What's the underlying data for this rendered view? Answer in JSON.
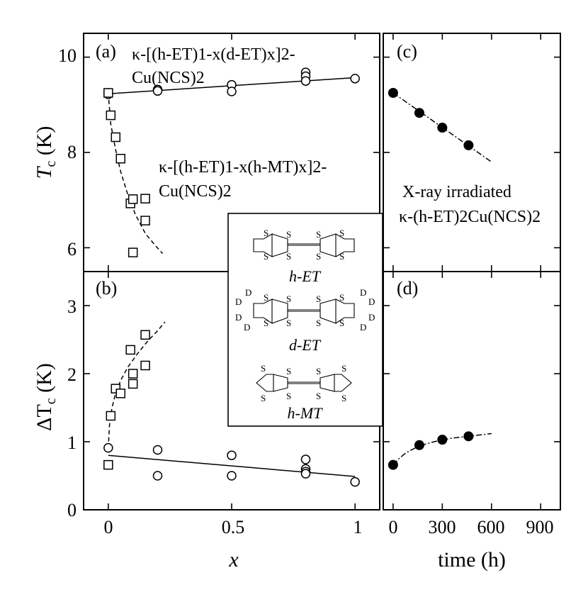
{
  "chart_data": [
    {
      "panel": "(a)",
      "type": "scatter",
      "xlabel": "",
      "ylabel": "T_c (K)",
      "xlim": [
        -0.1,
        1.1
      ],
      "ylim": [
        5.5,
        10.5
      ],
      "xticks": [
        0,
        0.5,
        1
      ],
      "yticks": [
        6,
        8,
        10
      ],
      "series": [
        {
          "name": "κ-[(h-ET)1-x(d-ET)x]2-Cu(NCS)2",
          "marker": "circle-open",
          "points": [
            [
              0,
              9.25
            ],
            [
              0,
              9.22
            ],
            [
              0.2,
              9.32
            ],
            [
              0.2,
              9.29
            ],
            [
              0.5,
              9.42
            ],
            [
              0.5,
              9.28
            ],
            [
              0.8,
              9.68
            ],
            [
              0.8,
              9.6
            ],
            [
              0.8,
              9.5
            ],
            [
              1,
              9.55
            ]
          ],
          "fit": {
            "style": "solid",
            "from": [
              0,
              9.23
            ],
            "to": [
              1,
              9.57
            ]
          }
        },
        {
          "name": "κ-[(h-ET)1-x(h-MT)x]2-Cu(NCS)2",
          "marker": "square-open",
          "points": [
            [
              0,
              9.25
            ],
            [
              0.01,
              8.78
            ],
            [
              0.03,
              8.32
            ],
            [
              0.05,
              7.87
            ],
            [
              0.09,
              6.93
            ],
            [
              0.1,
              7.02
            ],
            [
              0.15,
              7.03
            ],
            [
              0.15,
              6.57
            ],
            [
              0.1,
              5.9
            ]
          ],
          "fit": {
            "style": "dashed",
            "curve": [
              [
                0,
                9.25
              ],
              [
                0.01,
                8.6
              ],
              [
                0.03,
                8.05
              ],
              [
                0.05,
                7.6
              ],
              [
                0.08,
                7.1
              ],
              [
                0.11,
                6.7
              ],
              [
                0.15,
                6.3
              ],
              [
                0.19,
                6.05
              ],
              [
                0.22,
                5.88
              ]
            ]
          }
        }
      ],
      "annotations": [
        "κ-[(h-ET)1-x(d-ET)x]2-Cu(NCS)2",
        "κ-[(h-ET)1-x(h-MT)x]2-Cu(NCS)2"
      ]
    },
    {
      "panel": "(b)",
      "type": "scatter",
      "xlabel": "x",
      "ylabel": "ΔT_c (K)",
      "xlim": [
        -0.1,
        1.1
      ],
      "ylim": [
        0,
        3.5
      ],
      "xticks": [
        0,
        0.5,
        1
      ],
      "yticks": [
        0,
        1,
        2,
        3
      ],
      "series": [
        {
          "name": "d-ET",
          "marker": "circle-open",
          "points": [
            [
              0,
              0.91
            ],
            [
              0,
              0.66
            ],
            [
              0.2,
              0.88
            ],
            [
              0.2,
              0.5
            ],
            [
              0.5,
              0.8
            ],
            [
              0.5,
              0.5
            ],
            [
              0.8,
              0.74
            ],
            [
              0.8,
              0.6
            ],
            [
              0.8,
              0.56
            ],
            [
              0.8,
              0.53
            ],
            [
              1,
              0.41
            ]
          ],
          "fit": {
            "style": "solid",
            "from": [
              0,
              0.8
            ],
            "to": [
              1,
              0.49
            ]
          }
        },
        {
          "name": "h-MT",
          "marker": "square-open",
          "points": [
            [
              0,
              0.66
            ],
            [
              0.01,
              1.38
            ],
            [
              0.03,
              1.78
            ],
            [
              0.05,
              1.71
            ],
            [
              0.09,
              2.35
            ],
            [
              0.1,
              1.85
            ],
            [
              0.1,
              2.0
            ],
            [
              0.15,
              2.57
            ],
            [
              0.15,
              2.12
            ]
          ],
          "fit": {
            "style": "dashed",
            "curve": [
              [
                0,
                0.9
              ],
              [
                0.005,
                1.25
              ],
              [
                0.015,
                1.5
              ],
              [
                0.03,
                1.72
              ],
              [
                0.05,
                1.9
              ],
              [
                0.08,
                2.1
              ],
              [
                0.12,
                2.3
              ],
              [
                0.16,
                2.48
              ],
              [
                0.2,
                2.63
              ],
              [
                0.23,
                2.76
              ]
            ]
          }
        }
      ]
    },
    {
      "panel": "(c)",
      "type": "scatter",
      "xlabel": "",
      "ylabel": "",
      "xlim": [
        -60,
        1020
      ],
      "ylim": [
        5.5,
        10.5
      ],
      "xticks": [
        0,
        300,
        600,
        900
      ],
      "yticks": [
        6,
        8,
        10
      ],
      "series": [
        {
          "name": "X-ray irradiated κ-(h-ET)2Cu(NCS)2",
          "marker": "circle-filled",
          "points": [
            [
              0,
              9.25
            ],
            [
              160,
              8.83
            ],
            [
              300,
              8.52
            ],
            [
              460,
              8.15
            ]
          ],
          "fit": {
            "style": "dash-dot",
            "from": [
              0,
              9.25
            ],
            "to": [
              600,
              7.8
            ]
          }
        }
      ],
      "annotation": "X-ray irradiated κ-(h-ET)2Cu(NCS)2"
    },
    {
      "panel": "(d)",
      "type": "scatter",
      "xlabel": "time (h)",
      "ylabel": "",
      "xlim": [
        -60,
        1020
      ],
      "ylim": [
        0,
        3.5
      ],
      "xticks": [
        0,
        300,
        600,
        900
      ],
      "yticks": [
        0,
        1,
        2,
        3
      ],
      "series": [
        {
          "name": "X-ray irradiated",
          "marker": "circle-filled",
          "points": [
            [
              0,
              0.66
            ],
            [
              160,
              0.95
            ],
            [
              300,
              1.03
            ],
            [
              460,
              1.08
            ]
          ],
          "fit": {
            "style": "dash-dot",
            "curve": [
              [
                0,
                0.66
              ],
              [
                40,
                0.76
              ],
              [
                80,
                0.84
              ],
              [
                160,
                0.94
              ],
              [
                250,
                1.0
              ],
              [
                350,
                1.05
              ],
              [
                460,
                1.08
              ],
              [
                600,
                1.12
              ]
            ]
          }
        }
      ]
    }
  ],
  "labels": {
    "panel_a": "(a)",
    "panel_b": "(b)",
    "panel_c": "(c)",
    "panel_d": "(d)",
    "x_ticks": [
      "0",
      "0.5",
      "1"
    ],
    "time_ticks": [
      "0",
      "300",
      "600",
      "900"
    ],
    "top_y_ticks": [
      "6",
      "8",
      "10"
    ],
    "bottom_y_ticks": [
      "0",
      "1",
      "2",
      "3"
    ],
    "y_label_top": "T",
    "y_label_top_sub": "c",
    "y_label_top_unit": " (K)",
    "y_label_bottom": "ΔT",
    "y_label_bottom_sub": "c",
    "y_label_bottom_unit": " (K)",
    "x_label_left": "x",
    "x_label_right": "time (h)",
    "anno_det_line1": "κ-[(h-ET)1-x(d-ET)x]2-",
    "anno_det_line2": "Cu(NCS)2",
    "anno_mt_line1": "κ-[(h-ET)1-x(h-MT)x]2-",
    "anno_mt_line2": "Cu(NCS)2",
    "anno_xray_line1": "X-ray irradiated",
    "anno_xray_line2": "κ-(h-ET)2Cu(NCS)2",
    "mol_het": "h-ET",
    "mol_det": "d-ET",
    "mol_hmt": "h-MT",
    "atom_s": "S",
    "atom_d": "D"
  }
}
